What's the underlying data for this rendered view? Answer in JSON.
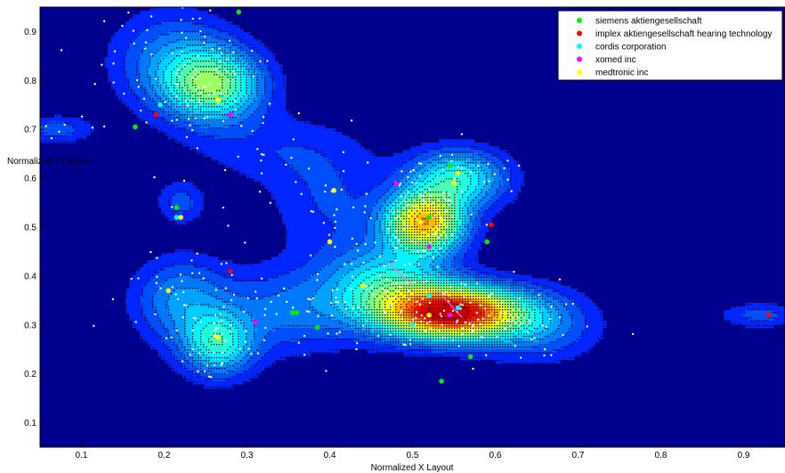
{
  "chart_data": {
    "type": "contour",
    "xlabel": "Normalized X Layout",
    "ylabel": "Normalized Y Layout",
    "xlim": [
      0.05,
      0.95
    ],
    "ylim": [
      0.05,
      0.95
    ],
    "xticks": [
      "0.1",
      "0.2",
      "0.3",
      "0.4",
      "0.5",
      "0.6",
      "0.7",
      "0.8",
      "0.9"
    ],
    "yticks": [
      "0.1",
      "0.2",
      "0.3",
      "0.4",
      "0.5",
      "0.6",
      "0.7",
      "0.8",
      "0.9"
    ],
    "legend_position": "top-right",
    "density_peaks": [
      {
        "x": 0.548,
        "y": 0.325,
        "level": 1.0,
        "sx": 0.055,
        "sy": 0.036
      },
      {
        "x": 0.47,
        "y": 0.38,
        "level": 0.34,
        "sx": 0.05,
        "sy": 0.055
      },
      {
        "x": 0.515,
        "y": 0.51,
        "level": 0.72,
        "sx": 0.032,
        "sy": 0.042
      },
      {
        "x": 0.555,
        "y": 0.6,
        "level": 0.36,
        "sx": 0.04,
        "sy": 0.04
      },
      {
        "x": 0.26,
        "y": 0.79,
        "level": 0.45,
        "sx": 0.04,
        "sy": 0.05
      },
      {
        "x": 0.21,
        "y": 0.84,
        "level": 0.18,
        "sx": 0.05,
        "sy": 0.07
      },
      {
        "x": 0.265,
        "y": 0.26,
        "level": 0.34,
        "sx": 0.03,
        "sy": 0.045
      },
      {
        "x": 0.22,
        "y": 0.35,
        "level": 0.2,
        "sx": 0.04,
        "sy": 0.06
      },
      {
        "x": 0.35,
        "y": 0.33,
        "level": 0.16,
        "sx": 0.06,
        "sy": 0.06
      },
      {
        "x": 0.65,
        "y": 0.3,
        "level": 0.18,
        "sx": 0.05,
        "sy": 0.05
      },
      {
        "x": 0.4,
        "y": 0.55,
        "level": 0.1,
        "sx": 0.05,
        "sy": 0.08
      },
      {
        "x": 0.22,
        "y": 0.55,
        "level": 0.12,
        "sx": 0.02,
        "sy": 0.03
      },
      {
        "x": 0.07,
        "y": 0.7,
        "level": 0.13,
        "sx": 0.03,
        "sy": 0.02
      },
      {
        "x": 0.92,
        "y": 0.32,
        "level": 0.12,
        "sx": 0.035,
        "sy": 0.018
      },
      {
        "x": 0.33,
        "y": 0.66,
        "level": 0.08,
        "sx": 0.07,
        "sy": 0.05
      }
    ],
    "series": [
      {
        "name": "siemens aktiengesellschaft",
        "color": "#00ee00",
        "points": [
          [
            0.165,
            0.705
          ],
          [
            0.215,
            0.54
          ],
          [
            0.36,
            0.325
          ],
          [
            0.355,
            0.325
          ],
          [
            0.385,
            0.295
          ],
          [
            0.545,
            0.625
          ],
          [
            0.52,
            0.52
          ],
          [
            0.59,
            0.47
          ],
          [
            0.535,
            0.185
          ],
          [
            0.57,
            0.235
          ],
          [
            0.29,
            0.94
          ]
        ]
      },
      {
        "name": "implex aktiengesellschaft hearing technology",
        "color": "#ff0000",
        "points": [
          [
            0.19,
            0.73
          ],
          [
            0.28,
            0.41
          ],
          [
            0.595,
            0.505
          ],
          [
            0.93,
            0.32
          ]
        ]
      },
      {
        "name": "cordis corporation",
        "color": "#00ffff",
        "points": [
          [
            0.195,
            0.75
          ],
          [
            0.265,
            0.85
          ],
          [
            0.215,
            0.52
          ],
          [
            0.52,
            0.36
          ],
          [
            0.555,
            0.335
          ],
          [
            0.635,
            0.34
          ],
          [
            0.5,
            0.3
          ]
        ]
      },
      {
        "name": "xomed inc",
        "color": "#ff00ff",
        "points": [
          [
            0.28,
            0.73
          ],
          [
            0.31,
            0.305
          ],
          [
            0.48,
            0.59
          ],
          [
            0.52,
            0.46
          ],
          [
            0.545,
            0.32
          ]
        ]
      },
      {
        "name": "medtronic inc",
        "color": "#ffff00",
        "points": [
          [
            0.265,
            0.76
          ],
          [
            0.22,
            0.52
          ],
          [
            0.205,
            0.37
          ],
          [
            0.265,
            0.275
          ],
          [
            0.4,
            0.47
          ],
          [
            0.405,
            0.575
          ],
          [
            0.44,
            0.38
          ],
          [
            0.51,
            0.51
          ],
          [
            0.55,
            0.59
          ],
          [
            0.555,
            0.61
          ],
          [
            0.52,
            0.32
          ]
        ]
      }
    ]
  }
}
